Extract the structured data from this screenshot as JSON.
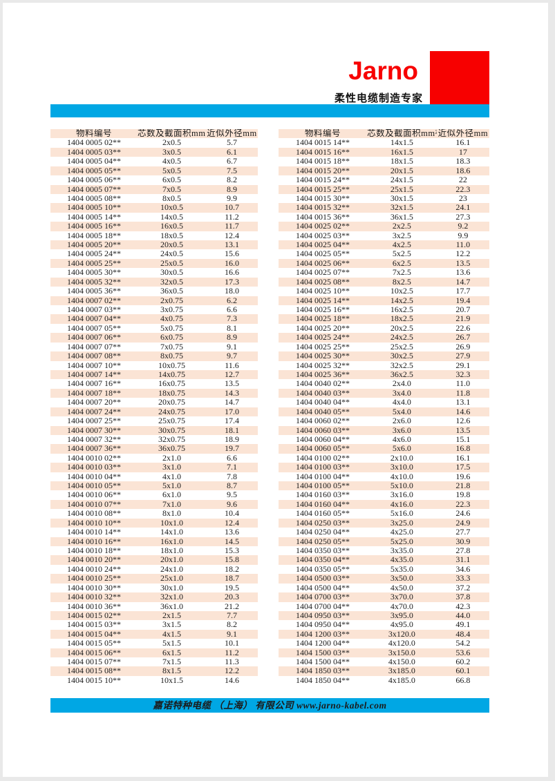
{
  "brand": {
    "logo": "Jarno",
    "tagline": "柔性电缆制造专家"
  },
  "footer": {
    "company_line": "嘉诺特种电缆 （上海） 有限公司 www.jarno-kabel.com"
  },
  "colors": {
    "accent_red": "#f70000",
    "cyan": "#00a7e4",
    "row_pink": "#fbe4d5",
    "text": "#1a1a1a"
  },
  "tables": {
    "headers": [
      "物料编号",
      "芯数及截面积mm²",
      "近似外径mm"
    ],
    "left_rows": [
      [
        "1404 0005 02**",
        "2x0.5",
        "5.7"
      ],
      [
        "1404 0005 03**",
        "3x0.5",
        "6.1"
      ],
      [
        "1404 0005 04**",
        "4x0.5",
        "6.7"
      ],
      [
        "1404 0005 05**",
        "5x0.5",
        "7.5"
      ],
      [
        "1404 0005 06**",
        "6x0.5",
        "8.2"
      ],
      [
        "1404 0005 07**",
        "7x0.5",
        "8.9"
      ],
      [
        "1404 0005 08**",
        "8x0.5",
        "9.9"
      ],
      [
        "1404 0005 10**",
        "10x0.5",
        "10.7"
      ],
      [
        "1404 0005 14**",
        "14x0.5",
        "11.2"
      ],
      [
        "1404 0005 16**",
        "16x0.5",
        "11.7"
      ],
      [
        "1404 0005 18**",
        "18x0.5",
        "12.4"
      ],
      [
        "1404 0005 20**",
        "20x0.5",
        "13.1"
      ],
      [
        "1404 0005 24**",
        "24x0.5",
        "15.6"
      ],
      [
        "1404 0005 25**",
        "25x0.5",
        "16.0"
      ],
      [
        "1404 0005 30**",
        "30x0.5",
        "16.6"
      ],
      [
        "1404 0005 32**",
        "32x0.5",
        "17.3"
      ],
      [
        "1404 0005 36**",
        "36x0.5",
        "18.0"
      ],
      [
        "1404 0007 02**",
        "2x0.75",
        "6.2"
      ],
      [
        "1404 0007 03**",
        "3x0.75",
        "6.6"
      ],
      [
        "1404 0007 04**",
        "4x0.75",
        "7.3"
      ],
      [
        "1404 0007 05**",
        "5x0.75",
        "8.1"
      ],
      [
        "1404 0007 06**",
        "6x0.75",
        "8.9"
      ],
      [
        "1404 0007 07**",
        "7x0.75",
        "9.1"
      ],
      [
        "1404 0007 08**",
        "8x0.75",
        "9.7"
      ],
      [
        "1404 0007 10**",
        "10x0.75",
        "11.6"
      ],
      [
        "1404 0007 14**",
        "14x0.75",
        "12.7"
      ],
      [
        "1404 0007 16**",
        "16x0.75",
        "13.5"
      ],
      [
        "1404 0007 18**",
        "18x0.75",
        "14.3"
      ],
      [
        "1404 0007 20**",
        "20x0.75",
        "14.7"
      ],
      [
        "1404 0007 24**",
        "24x0.75",
        "17.0"
      ],
      [
        "1404 0007 25**",
        "25x0.75",
        "17.4"
      ],
      [
        "1404 0007 30**",
        "30x0.75",
        "18.1"
      ],
      [
        "1404 0007 32**",
        "32x0.75",
        "18.9"
      ],
      [
        "1404 0007 36**",
        "36x0.75",
        "19.7"
      ],
      [
        "1404 0010 02**",
        "2x1.0",
        "6.6"
      ],
      [
        "1404 0010 03**",
        "3x1.0",
        "7.1"
      ],
      [
        "1404 0010 04**",
        "4x1.0",
        "7.8"
      ],
      [
        "1404 0010 05**",
        "5x1.0",
        "8.7"
      ],
      [
        "1404 0010 06**",
        "6x1.0",
        "9.5"
      ],
      [
        "1404 0010 07**",
        "7x1.0",
        "9.6"
      ],
      [
        "1404 0010 08**",
        "8x1.0",
        "10.4"
      ],
      [
        "1404 0010 10**",
        "10x1.0",
        "12.4"
      ],
      [
        "1404 0010 14**",
        "14x1.0",
        "13.6"
      ],
      [
        "1404 0010 16**",
        "16x1.0",
        "14.5"
      ],
      [
        "1404 0010 18**",
        "18x1.0",
        "15.3"
      ],
      [
        "1404 0010 20**",
        "20x1.0",
        "15.8"
      ],
      [
        "1404 0010 24**",
        "24x1.0",
        "18.2"
      ],
      [
        "1404 0010 25**",
        "25x1.0",
        "18.7"
      ],
      [
        "1404 0010 30**",
        "30x1.0",
        "19.5"
      ],
      [
        "1404 0010 32**",
        "32x1.0",
        "20.3"
      ],
      [
        "1404 0010 36**",
        "36x1.0",
        "21.2"
      ],
      [
        "1404 0015 02**",
        "2x1.5",
        "7.7"
      ],
      [
        "1404 0015 03**",
        "3x1.5",
        "8.2"
      ],
      [
        "1404 0015 04**",
        "4x1.5",
        "9.1"
      ],
      [
        "1404 0015 05**",
        "5x1.5",
        "10.1"
      ],
      [
        "1404 0015 06**",
        "6x1.5",
        "11.2"
      ],
      [
        "1404 0015 07**",
        "7x1.5",
        "11.3"
      ],
      [
        "1404 0015 08**",
        "8x1.5",
        "12.2"
      ],
      [
        "1404 0015 10**",
        "10x1.5",
        "14.6"
      ]
    ],
    "right_rows": [
      [
        "1404 0015 14**",
        "14x1.5",
        "16.1"
      ],
      [
        "1404 0015 16**",
        "16x1.5",
        "17"
      ],
      [
        "1404 0015 18**",
        "18x1.5",
        "18.3"
      ],
      [
        "1404 0015 20**",
        "20x1.5",
        "18.6"
      ],
      [
        "1404 0015 24**",
        "24x1.5",
        "22"
      ],
      [
        "1404 0015 25**",
        "25x1.5",
        "22.3"
      ],
      [
        "1404 0015 30**",
        "30x1.5",
        "23"
      ],
      [
        "1404 0015 32**",
        "32x1.5",
        "24.1"
      ],
      [
        "1404 0015 36**",
        "36x1.5",
        "27.3"
      ],
      [
        "1404 0025 02**",
        "2x2.5",
        "9.2"
      ],
      [
        "1404 0025 03**",
        "3x2.5",
        "9.9"
      ],
      [
        "1404 0025 04**",
        "4x2.5",
        "11.0"
      ],
      [
        "1404 0025 05**",
        "5x2.5",
        "12.2"
      ],
      [
        "1404 0025 06**",
        "6x2.5",
        "13.5"
      ],
      [
        "1404 0025 07**",
        "7x2.5",
        "13.6"
      ],
      [
        "1404 0025 08**",
        "8x2.5",
        "14.7"
      ],
      [
        "1404 0025 10**",
        "10x2.5",
        "17.7"
      ],
      [
        "1404 0025 14**",
        "14x2.5",
        "19.4"
      ],
      [
        "1404 0025 16**",
        "16x2.5",
        "20.7"
      ],
      [
        "1404 0025 18**",
        "18x2.5",
        "21.9"
      ],
      [
        "1404 0025 20**",
        "20x2.5",
        "22.6"
      ],
      [
        "1404 0025 24**",
        "24x2.5",
        "26.7"
      ],
      [
        "1404 0025 25**",
        "25x2.5",
        "26.9"
      ],
      [
        "1404 0025 30**",
        "30x2.5",
        "27.9"
      ],
      [
        "1404 0025 32**",
        "32x2.5",
        "29.1"
      ],
      [
        "1404 0025 36**",
        "36x2.5",
        "32.3"
      ],
      [
        "1404 0040 02**",
        "2x4.0",
        "11.0"
      ],
      [
        "1404 0040 03**",
        "3x4.0",
        "11.8"
      ],
      [
        "1404 0040 04**",
        "4x4.0",
        "13.1"
      ],
      [
        "1404 0040 05**",
        "5x4.0",
        "14.6"
      ],
      [
        "1404 0060 02**",
        "2x6.0",
        "12.6"
      ],
      [
        "1404 0060 03**",
        "3x6.0",
        "13.5"
      ],
      [
        "1404 0060 04**",
        "4x6.0",
        "15.1"
      ],
      [
        "1404 0060 05**",
        "5x6.0",
        "16.8"
      ],
      [
        "1404 0100 02**",
        "2x10.0",
        "16.1"
      ],
      [
        "1404 0100 03**",
        "3x10.0",
        "17.5"
      ],
      [
        "1404 0100 04**",
        "4x10.0",
        "19.6"
      ],
      [
        "1404 0100 05**",
        "5x10.0",
        "21.8"
      ],
      [
        "1404 0160 03**",
        "3x16.0",
        "19.8"
      ],
      [
        "1404 0160 04**",
        "4x16.0",
        "22.3"
      ],
      [
        "1404 0160 05**",
        "5x16.0",
        "24.6"
      ],
      [
        "1404 0250 03**",
        "3x25.0",
        "24.9"
      ],
      [
        "1404 0250 04**",
        "4x25.0",
        "27.7"
      ],
      [
        "1404 0250 05**",
        "5x25.0",
        "30.9"
      ],
      [
        "1404 0350 03**",
        "3x35.0",
        "27.8"
      ],
      [
        "1404 0350 04**",
        "4x35.0",
        "31.1"
      ],
      [
        "1404 0350 05**",
        "5x35.0",
        "34.6"
      ],
      [
        "1404 0500 03**",
        "3x50.0",
        "33.3"
      ],
      [
        "1404 0500 04**",
        "4x50.0",
        "37.2"
      ],
      [
        "1404 0700 03**",
        "3x70.0",
        "37.8"
      ],
      [
        "1404 0700 04**",
        "4x70.0",
        "42.3"
      ],
      [
        "1404 0950 03**",
        "3x95.0",
        "44.0"
      ],
      [
        "1404 0950 04**",
        "4x95.0",
        "49.1"
      ],
      [
        "1404 1200 03**",
        "3x120.0",
        "48.4"
      ],
      [
        "1404 1200 04**",
        "4x120.0",
        "54.2"
      ],
      [
        "1404 1500 03**",
        "3x150.0",
        "53.6"
      ],
      [
        "1404 1500 04**",
        "4x150.0",
        "60.2"
      ],
      [
        "1404 1850 03**",
        "3x185.0",
        "60.1"
      ],
      [
        "1404 1850 04**",
        "4x185.0",
        "66.8"
      ]
    ]
  }
}
